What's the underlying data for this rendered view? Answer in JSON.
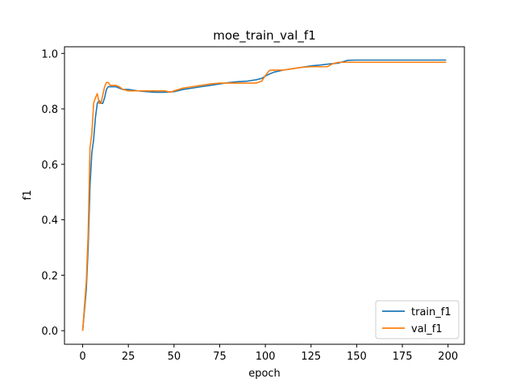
{
  "chart_data": {
    "type": "line",
    "title": "moe_train_val_f1",
    "xlabel": "epoch",
    "ylabel": "f1",
    "xlim": [
      -9.95,
      208.95
    ],
    "ylim": [
      -0.049,
      1.024
    ],
    "xticks": [
      0,
      25,
      50,
      75,
      100,
      125,
      150,
      175,
      200
    ],
    "yticks": [
      0.0,
      0.2,
      0.4,
      0.6,
      0.8,
      1.0
    ],
    "xtick_labels": [
      "0",
      "25",
      "50",
      "75",
      "100",
      "125",
      "150",
      "175",
      "200"
    ],
    "ytick_labels": [
      "0.0",
      "0.2",
      "0.4",
      "0.6",
      "0.8",
      "1.0"
    ],
    "grid": false,
    "legend": "bottom-right",
    "series": [
      {
        "name": "train_f1",
        "color": "#1f77b4",
        "x": [
          0,
          2,
          3,
          4,
          5,
          6,
          7,
          8,
          9,
          10,
          11,
          12,
          13,
          14,
          15,
          18,
          20,
          22,
          25,
          30,
          35,
          40,
          45,
          50,
          55,
          60,
          65,
          70,
          75,
          80,
          85,
          90,
          95,
          98,
          100,
          102,
          105,
          110,
          115,
          120,
          125,
          130,
          135,
          140,
          145,
          150,
          160,
          170,
          180,
          190,
          199
        ],
        "y": [
          0.0,
          0.15,
          0.3,
          0.52,
          0.64,
          0.69,
          0.77,
          0.82,
          0.83,
          0.82,
          0.82,
          0.84,
          0.87,
          0.88,
          0.88,
          0.88,
          0.875,
          0.87,
          0.87,
          0.865,
          0.862,
          0.86,
          0.86,
          0.862,
          0.87,
          0.875,
          0.88,
          0.885,
          0.89,
          0.895,
          0.898,
          0.9,
          0.905,
          0.91,
          0.918,
          0.925,
          0.933,
          0.94,
          0.945,
          0.95,
          0.955,
          0.958,
          0.962,
          0.965,
          0.975,
          0.976,
          0.976,
          0.976,
          0.976,
          0.976,
          0.976
        ]
      },
      {
        "name": "val_f1",
        "color": "#ff7f0e",
        "x": [
          0,
          2,
          3,
          4,
          5,
          6,
          7,
          8,
          9,
          10,
          11,
          12,
          13,
          14,
          15,
          18,
          20,
          22,
          25,
          30,
          35,
          40,
          45,
          48,
          50,
          55,
          60,
          65,
          70,
          75,
          80,
          85,
          90,
          95,
          98,
          100,
          102,
          103,
          105,
          110,
          115,
          120,
          125,
          130,
          134,
          136,
          138,
          140,
          145,
          150,
          160,
          170,
          180,
          190,
          199
        ],
        "y": [
          0.0,
          0.18,
          0.35,
          0.66,
          0.71,
          0.82,
          0.84,
          0.855,
          0.82,
          0.82,
          0.85,
          0.88,
          0.895,
          0.895,
          0.885,
          0.885,
          0.88,
          0.87,
          0.865,
          0.865,
          0.865,
          0.865,
          0.865,
          0.86,
          0.865,
          0.875,
          0.88,
          0.885,
          0.89,
          0.893,
          0.893,
          0.893,
          0.893,
          0.893,
          0.9,
          0.92,
          0.937,
          0.94,
          0.94,
          0.94,
          0.945,
          0.95,
          0.952,
          0.952,
          0.952,
          0.96,
          0.965,
          0.968,
          0.968,
          0.968,
          0.968,
          0.968,
          0.968,
          0.968,
          0.968
        ]
      }
    ]
  }
}
